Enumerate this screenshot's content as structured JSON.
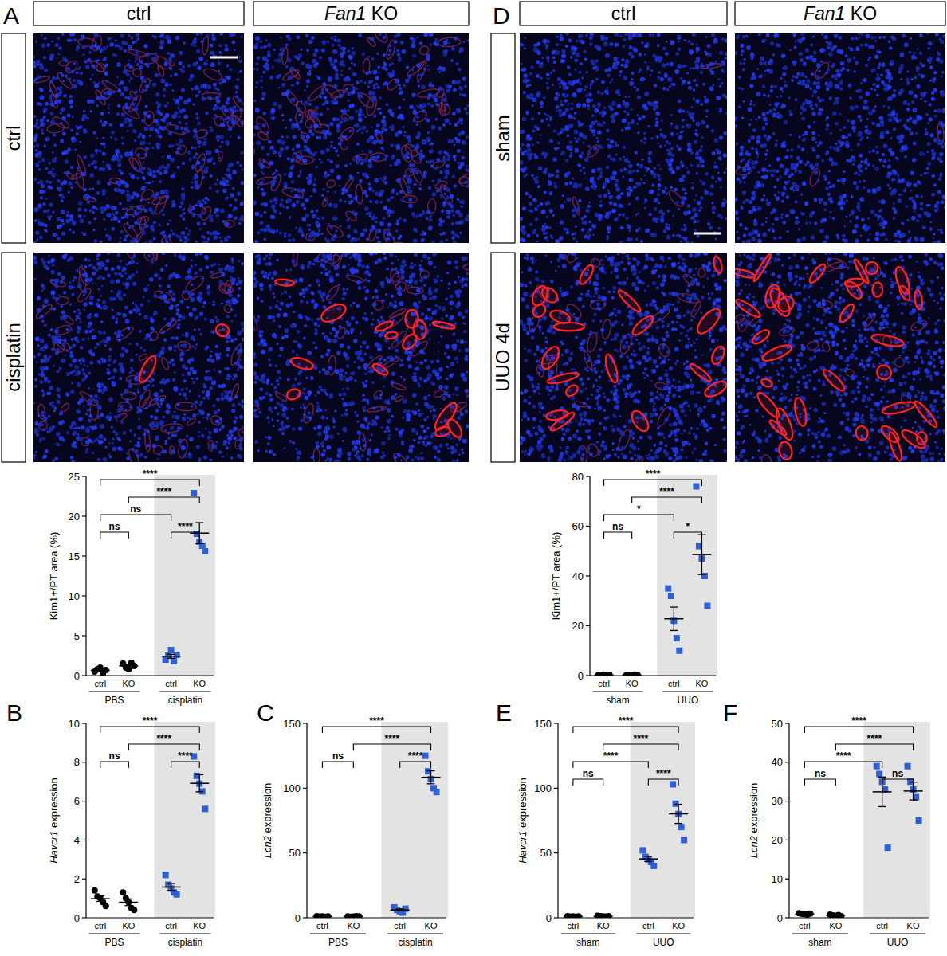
{
  "images": [
    {
      "columns": [
        [
          {
            "text": "ctrl"
          }
        ],
        [
          {
            "text": "Fan1",
            "italic": true
          },
          {
            "text": " KO"
          }
        ]
      ],
      "rows": [
        "ctrl",
        "cisplatin"
      ]
    },
    {
      "columns": [
        [
          {
            "text": "ctrl"
          }
        ],
        [
          {
            "text": "Fan1",
            "italic": true
          },
          {
            "text": " KO"
          }
        ]
      ],
      "rows": [
        "sham",
        "UUO 4d"
      ]
    }
  ],
  "chart_data": [
    {
      "panel": "A",
      "type": "scatter",
      "y_label": [
        {
          "text": "Kim1+/PT area (%)"
        }
      ],
      "categories": [
        "ctrl",
        "KO",
        "ctrl",
        "KO"
      ],
      "groups": [
        {
          "label": "PBS",
          "members": [
            0,
            1
          ]
        },
        {
          "label": "cisplatin",
          "members": [
            2,
            3
          ]
        }
      ],
      "shaded_group": "cisplatin",
      "points": [
        [
          0.5,
          0.8,
          1.0,
          0.3,
          0.7
        ],
        [
          1.5,
          1.0,
          0.8,
          1.6,
          1.2
        ],
        [
          2.0,
          2.5,
          3.2,
          1.8,
          2.6
        ],
        [
          22.9,
          17.8,
          16.8,
          16.3,
          15.6
        ]
      ],
      "means": [
        0.66,
        1.22,
        2.42,
        17.88
      ],
      "sems": [
        0.12,
        0.16,
        0.25,
        1.32
      ],
      "colors": [
        "#000000",
        "#000000",
        "#2f5fd0",
        "#2f5fd0"
      ],
      "markers": [
        "circle",
        "circle",
        "square",
        "square"
      ],
      "ylim": [
        0,
        25
      ],
      "yticks": [
        0,
        5,
        10,
        15,
        20,
        25
      ],
      "comparisons": [
        {
          "pair": [
            0,
            1
          ],
          "label": "ns"
        },
        {
          "pair": [
            2,
            3
          ],
          "label": "****"
        },
        {
          "pair": [
            0,
            2
          ],
          "label": "ns"
        },
        {
          "pair": [
            1,
            3
          ],
          "label": "****"
        },
        {
          "pair": [
            0,
            3
          ],
          "label": "****"
        }
      ]
    },
    {
      "panel": "B",
      "type": "scatter",
      "y_label": [
        {
          "text": "Havcr1",
          "italic": true
        },
        {
          "text": " expression"
        }
      ],
      "categories": [
        "ctrl",
        "KO",
        "ctrl",
        "KO"
      ],
      "groups": [
        {
          "label": "PBS",
          "members": [
            0,
            1
          ]
        },
        {
          "label": "cisplatin",
          "members": [
            2,
            3
          ]
        }
      ],
      "shaded_group": "cisplatin",
      "points": [
        [
          1.4,
          1.1,
          1.0,
          0.8,
          0.6
        ],
        [
          1.3,
          1.0,
          0.8,
          0.5,
          0.4
        ],
        [
          2.2,
          1.7,
          1.5,
          1.3,
          1.2
        ],
        [
          8.3,
          7.3,
          6.9,
          6.5,
          5.6
        ]
      ],
      "means": [
        0.98,
        0.8,
        1.58,
        6.92
      ],
      "sems": [
        0.14,
        0.17,
        0.18,
        0.44
      ],
      "colors": [
        "#000000",
        "#000000",
        "#2f5fd0",
        "#2f5fd0"
      ],
      "markers": [
        "circle",
        "circle",
        "square",
        "square"
      ],
      "ylim": [
        0,
        10
      ],
      "yticks": [
        0,
        2,
        4,
        6,
        8,
        10
      ],
      "comparisons": [
        {
          "pair": [
            0,
            1
          ],
          "label": "ns"
        },
        {
          "pair": [
            2,
            3
          ],
          "label": "****"
        },
        {
          "pair": [
            1,
            3
          ],
          "label": "****"
        },
        {
          "pair": [
            0,
            3
          ],
          "label": "****"
        }
      ]
    },
    {
      "panel": "C",
      "type": "scatter",
      "y_label": [
        {
          "text": "Lcn2",
          "italic": true
        },
        {
          "text": " expression"
        }
      ],
      "categories": [
        "ctrl",
        "KO",
        "ctrl",
        "KO"
      ],
      "groups": [
        {
          "label": "PBS",
          "members": [
            0,
            1
          ]
        },
        {
          "label": "cisplatin",
          "members": [
            2,
            3
          ]
        }
      ],
      "shaded_group": "cisplatin",
      "points": [
        [
          1.2,
          0.9,
          1.0,
          0.8,
          1.1
        ],
        [
          1.1,
          0.8,
          0.9,
          1.2,
          1.0
        ],
        [
          8,
          6,
          5,
          4,
          7
        ],
        [
          125,
          113,
          107,
          100,
          97
        ]
      ],
      "means": [
        1.0,
        1.0,
        6.0,
        108.4
      ],
      "sems": [
        0.07,
        0.07,
        0.71,
        5.0
      ],
      "colors": [
        "#000000",
        "#000000",
        "#2f5fd0",
        "#2f5fd0"
      ],
      "markers": [
        "circle",
        "circle",
        "square",
        "square"
      ],
      "ylim": [
        0,
        150
      ],
      "yticks": [
        0,
        50,
        100,
        150
      ],
      "comparisons": [
        {
          "pair": [
            0,
            1
          ],
          "label": "ns"
        },
        {
          "pair": [
            2,
            3
          ],
          "label": "****"
        },
        {
          "pair": [
            1,
            3
          ],
          "label": "****"
        },
        {
          "pair": [
            0,
            3
          ],
          "label": "****"
        }
      ]
    },
    {
      "panel": "D",
      "type": "scatter",
      "y_label": [
        {
          "text": "Kim1+/PT area (%)"
        }
      ],
      "categories": [
        "ctrl",
        "KO",
        "ctrl",
        "KO"
      ],
      "groups": [
        {
          "label": "sham",
          "members": [
            0,
            1
          ]
        },
        {
          "label": "UUO",
          "members": [
            2,
            3
          ]
        }
      ],
      "shaded_group": "UUO",
      "points": [
        [
          0.2,
          0.3,
          0.4,
          0.1,
          0.3
        ],
        [
          0.2,
          0.3,
          0.2,
          0.4,
          0.3
        ],
        [
          35,
          32,
          22,
          15,
          10
        ],
        [
          76,
          52,
          47,
          40,
          28
        ]
      ],
      "means": [
        0.26,
        0.28,
        22.8,
        48.6
      ],
      "sems": [
        0.05,
        0.04,
        4.7,
        8.0
      ],
      "colors": [
        "#000000",
        "#000000",
        "#2f5fd0",
        "#2f5fd0"
      ],
      "markers": [
        "circle",
        "circle",
        "square",
        "square"
      ],
      "ylim": [
        0,
        80
      ],
      "yticks": [
        0,
        20,
        40,
        60,
        80
      ],
      "comparisons": [
        {
          "pair": [
            0,
            1
          ],
          "label": "ns"
        },
        {
          "pair": [
            2,
            3
          ],
          "label": "*"
        },
        {
          "pair": [
            0,
            2
          ],
          "label": "*"
        },
        {
          "pair": [
            1,
            3
          ],
          "label": "****"
        },
        {
          "pair": [
            0,
            3
          ],
          "label": "****"
        }
      ]
    },
    {
      "panel": "E",
      "type": "scatter",
      "y_label": [
        {
          "text": "Havcr1",
          "italic": true
        },
        {
          "text": " expression"
        }
      ],
      "categories": [
        "ctrl",
        "KO",
        "ctrl",
        "KO"
      ],
      "groups": [
        {
          "label": "sham",
          "members": [
            0,
            1
          ]
        },
        {
          "label": "UUO",
          "members": [
            2,
            3
          ]
        }
      ],
      "shaded_group": "UUO",
      "points": [
        [
          1.2,
          0.9,
          1.0,
          0.8,
          1.1
        ],
        [
          1.5,
          1.3,
          1.0,
          0.9,
          1.2
        ],
        [
          52,
          47,
          45,
          43,
          40
        ],
        [
          103,
          88,
          80,
          70,
          60
        ]
      ],
      "means": [
        1.0,
        1.18,
        45.4,
        80.2
      ],
      "sems": [
        0.07,
        0.11,
        2.0,
        7.4
      ],
      "colors": [
        "#000000",
        "#000000",
        "#2f5fd0",
        "#2f5fd0"
      ],
      "markers": [
        "circle",
        "circle",
        "square",
        "square"
      ],
      "ylim": [
        0,
        150
      ],
      "yticks": [
        0,
        50,
        100,
        150
      ],
      "comparisons": [
        {
          "pair": [
            0,
            1
          ],
          "label": "ns"
        },
        {
          "pair": [
            2,
            3
          ],
          "label": "****"
        },
        {
          "pair": [
            0,
            2
          ],
          "label": "****"
        },
        {
          "pair": [
            1,
            3
          ],
          "label": "****"
        },
        {
          "pair": [
            0,
            3
          ],
          "label": "****"
        }
      ]
    },
    {
      "panel": "F",
      "type": "scatter",
      "y_label": [
        {
          "text": "Lcn2",
          "italic": true
        },
        {
          "text": " expression"
        }
      ],
      "categories": [
        "ctrl",
        "KO",
        "ctrl",
        "KO"
      ],
      "groups": [
        {
          "label": "sham",
          "members": [
            0,
            1
          ]
        },
        {
          "label": "UUO",
          "members": [
            2,
            3
          ]
        }
      ],
      "shaded_group": "UUO",
      "points": [
        [
          1.2,
          1.0,
          0.9,
          0.8,
          1.1
        ],
        [
          0.8,
          0.6,
          0.5,
          0.7,
          0.4
        ],
        [
          39,
          37,
          35,
          33,
          18
        ],
        [
          39,
          35,
          33,
          31,
          25
        ]
      ],
      "means": [
        1.0,
        0.6,
        32.4,
        32.6
      ],
      "sems": [
        0.07,
        0.07,
        3.8,
        2.3
      ],
      "colors": [
        "#000000",
        "#000000",
        "#2f5fd0",
        "#2f5fd0"
      ],
      "markers": [
        "circle",
        "circle",
        "square",
        "square"
      ],
      "ylim": [
        0,
        50
      ],
      "yticks": [
        0,
        10,
        20,
        30,
        40,
        50
      ],
      "comparisons": [
        {
          "pair": [
            0,
            1
          ],
          "label": "ns"
        },
        {
          "pair": [
            2,
            3
          ],
          "label": "ns"
        },
        {
          "pair": [
            0,
            2
          ],
          "label": "****"
        },
        {
          "pair": [
            1,
            3
          ],
          "label": "****"
        },
        {
          "pair": [
            0,
            3
          ],
          "label": "****"
        }
      ]
    }
  ]
}
